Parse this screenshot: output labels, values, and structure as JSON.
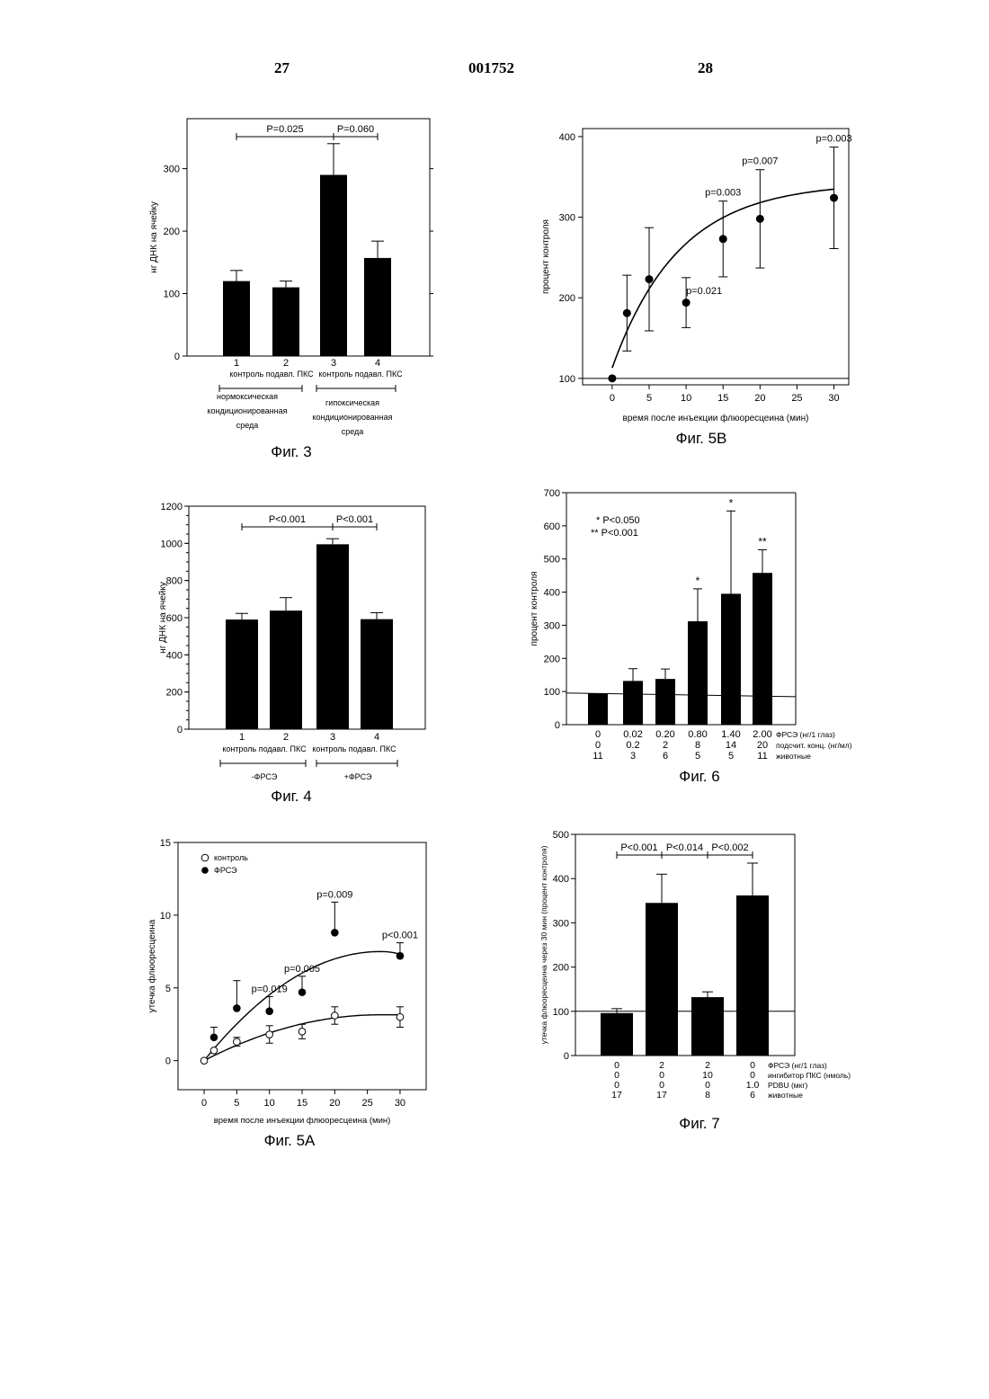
{
  "header": {
    "left_page": "27",
    "patent_number": "001752",
    "right_page": "28"
  },
  "chart_data": [
    {
      "id": "fig3",
      "type": "bar",
      "caption": "Фиг. 3",
      "ylabel": "нг ДНК на ячейку",
      "ylim": [
        0,
        380
      ],
      "yticks": [
        0,
        100,
        200,
        300
      ],
      "categories": [
        "1",
        "2",
        "3",
        "4"
      ],
      "values": [
        120,
        110,
        290,
        157
      ],
      "errors": [
        17,
        10,
        50,
        27
      ],
      "category_labels": [
        "контроль подавл. ПКС",
        "контроль подавл. ПКС"
      ],
      "group_labels": [
        [
          "нормоксическая",
          "кондиционированная",
          "среда"
        ],
        [
          "гипоксическая",
          "кондиционированная",
          "среда"
        ]
      ],
      "comparisons": [
        {
          "from": 1,
          "to": 3,
          "label": "P=0.025"
        },
        {
          "from": 3,
          "to": 4,
          "label": "P=0.060"
        }
      ]
    },
    {
      "id": "fig5b",
      "type": "scatter",
      "caption": "Фиг. 5В",
      "ylabel": "процент    контроля",
      "xlabel": "время после инъекции флюоресцеина (мин)",
      "xlim": [
        -4,
        32
      ],
      "ylim": [
        92,
        410
      ],
      "xticks": [
        0,
        5,
        10,
        15,
        20,
        25,
        30
      ],
      "yticks": [
        100,
        200,
        300,
        400
      ],
      "reference_line": 100,
      "points": [
        {
          "x": 0,
          "y": 100,
          "err": 0,
          "label": ""
        },
        {
          "x": 2,
          "y": 181,
          "err": 47,
          "label": ""
        },
        {
          "x": 5,
          "y": 223,
          "err": 64,
          "label": ""
        },
        {
          "x": 10,
          "y": 194,
          "err": 31,
          "label": "p=0.021"
        },
        {
          "x": 15,
          "y": 273,
          "err": 47,
          "label": "p=0.003"
        },
        {
          "x": 20,
          "y": 298,
          "err": 61,
          "label": "p=0.007"
        },
        {
          "x": 30,
          "y": 324,
          "err": 63,
          "label": "p=0.003"
        }
      ]
    },
    {
      "id": "fig4",
      "type": "bar",
      "caption": "Фиг. 4",
      "ylabel": "нг ДНК на ячейку",
      "ylim": [
        0,
        1200
      ],
      "yticks": [
        0,
        200,
        400,
        600,
        800,
        1000,
        1200
      ],
      "categories": [
        "1",
        "2",
        "3",
        "4"
      ],
      "values": [
        590,
        638,
        995,
        592
      ],
      "errors": [
        33,
        70,
        30,
        35
      ],
      "category_labels": [
        "контроль подавл. ПКС",
        "контроль подавл. ПКС"
      ],
      "group_labels": [
        [
          "-ФРСЭ"
        ],
        [
          "+ФРСЭ"
        ]
      ],
      "comparisons": [
        {
          "from": 1,
          "to": 3,
          "label": "P<0.001"
        },
        {
          "from": 3,
          "to": 4,
          "label": "P<0.001"
        }
      ]
    },
    {
      "id": "fig6",
      "type": "bar",
      "caption": "Фиг. 6",
      "ylabel": "процент    контроля",
      "ylim": [
        0,
        700
      ],
      "yticks": [
        0,
        100,
        200,
        300,
        400,
        500,
        600,
        700
      ],
      "reference_line": 90,
      "values": [
        95,
        132,
        138,
        312,
        395,
        458
      ],
      "errors": [
        0,
        37,
        30,
        98,
        250,
        70
      ],
      "stars": [
        "",
        "",
        "",
        "*",
        "*",
        "**"
      ],
      "legend": [
        "* P<0.050",
        "** P<0.001"
      ],
      "table_rows": [
        {
          "values": [
            "0",
            "0.02",
            "0.20",
            "0.80",
            "1.40",
            "2.00"
          ],
          "label": "ФРСЭ (нг/1 глаз)"
        },
        {
          "values": [
            "0",
            "0.2",
            "2",
            "8",
            "14",
            "20"
          ],
          "label": "подсчит. конц. (нг/мл)"
        },
        {
          "values": [
            "11",
            "3",
            "6",
            "5",
            "5",
            "11"
          ],
          "label": "животные"
        }
      ]
    },
    {
      "id": "fig5a",
      "type": "scatter",
      "caption": "Фиг. 5А",
      "ylabel": "утечка флюоресцеина",
      "xlabel": "время после инъекции флюоресцеина (мин)",
      "xlim": [
        -4,
        34
      ],
      "ylim": [
        -2,
        15
      ],
      "xticks": [
        0,
        5,
        10,
        15,
        20,
        25,
        30
      ],
      "yticks": [
        0,
        5,
        10,
        15
      ],
      "series": [
        {
          "name": "контроль",
          "marker": "open",
          "points": [
            {
              "x": 0,
              "y": 0,
              "err": 0
            },
            {
              "x": 1.5,
              "y": 0.7,
              "err": 0
            },
            {
              "x": 5,
              "y": 1.3,
              "err": 0.3
            },
            {
              "x": 10,
              "y": 1.8,
              "err": 0.6
            },
            {
              "x": 15,
              "y": 2.0,
              "err": 0.5
            },
            {
              "x": 20,
              "y": 3.1,
              "err": 0.6
            },
            {
              "x": 30,
              "y": 3.0,
              "err": 0.7
            }
          ]
        },
        {
          "name": "ФРСЭ",
          "marker": "filled",
          "points": [
            {
              "x": 1.5,
              "y": 1.6,
              "err": 0.7,
              "label": ""
            },
            {
              "x": 5,
              "y": 3.6,
              "err": 1.9,
              "label": ""
            },
            {
              "x": 10,
              "y": 3.4,
              "err": 1.0,
              "label": "p=0.019"
            },
            {
              "x": 15,
              "y": 4.7,
              "err": 1.1,
              "label": "p=0.005"
            },
            {
              "x": 20,
              "y": 8.8,
              "err": 2.1,
              "label": "p=0.009"
            },
            {
              "x": 30,
              "y": 7.2,
              "err": 0.9,
              "label": "p<0.001"
            }
          ]
        }
      ]
    },
    {
      "id": "fig7",
      "type": "bar",
      "caption": "Фиг. 7",
      "ylabel": "утечка флюоресцеина через 30 мин (процент    контроля)",
      "ylim": [
        0,
        500
      ],
      "yticks": [
        0,
        100,
        200,
        300,
        400,
        500
      ],
      "reference_line": 100,
      "values": [
        96,
        345,
        132,
        362
      ],
      "errors": [
        10,
        65,
        12,
        73
      ],
      "comparisons": [
        {
          "from": 1,
          "to": 2,
          "label": "P<0.001"
        },
        {
          "from": 2,
          "to": 3,
          "label": "P<0.014"
        },
        {
          "from": 3,
          "to": 4,
          "label": "P<0.002"
        }
      ],
      "table_rows": [
        {
          "values": [
            "0",
            "2",
            "2",
            "0"
          ],
          "label": "ФРСЭ (нг/1 глаз)"
        },
        {
          "values": [
            "0",
            "0",
            "10",
            "0"
          ],
          "label": "ингибитор ПКС (нмоль)"
        },
        {
          "values": [
            "0",
            "0",
            "0",
            "1.0"
          ],
          "label": "PDBU  (мкг)"
        },
        {
          "values": [
            "17",
            "17",
            "8",
            "6"
          ],
          "label": "животные"
        }
      ]
    }
  ]
}
